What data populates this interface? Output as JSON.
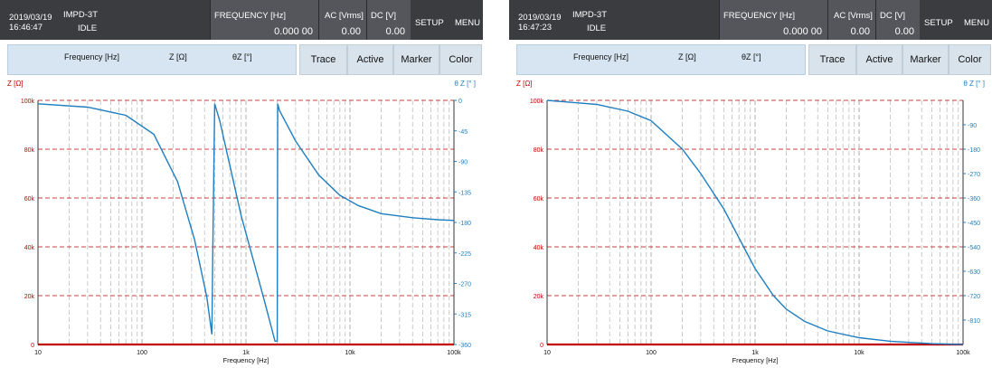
{
  "panels": [
    {
      "date": "2019/03/19",
      "time": "16:46:47",
      "model": "IMPD-3T",
      "status": "IDLE",
      "frequency": {
        "label": "FREQUENCY [Hz]",
        "value": "0.000 00"
      },
      "ac": {
        "label": "AC [Vrms]",
        "value": "0.00"
      },
      "dc": {
        "label": "DC [V]",
        "value": "0.00"
      },
      "setup": "SETUP",
      "menu": "MENU",
      "header_freq": "Frequency [Hz]",
      "header_z": "Z [Ω]",
      "header_theta": "θZ [°]",
      "tabs": [
        "Trace",
        "Active",
        "Marker",
        "Color"
      ],
      "left_axis_label": "Z [Ω]",
      "right_axis_label": "θ Z [° ]",
      "x_axis_label": "Frequency [Hz]"
    },
    {
      "date": "2019/03/19",
      "time": "16:47:23",
      "model": "IMPD-3T",
      "status": "IDLE",
      "frequency": {
        "label": "FREQUENCY [Hz]",
        "value": "0.000 00"
      },
      "ac": {
        "label": "AC [Vrms]",
        "value": "0.00"
      },
      "dc": {
        "label": "DC [V]",
        "value": "0.00"
      },
      "setup": "SETUP",
      "menu": "MENU",
      "header_freq": "Frequency [Hz]",
      "header_z": "Z [Ω]",
      "header_theta": "θZ [°]",
      "tabs": [
        "Trace",
        "Active",
        "Marker",
        "Color"
      ],
      "left_axis_label": "Z [Ω]",
      "right_axis_label": "θ Z [° ]",
      "x_axis_label": "Frequency [Hz]"
    }
  ],
  "colors": {
    "z_trace": "#c00000",
    "theta_trace": "#1f7fc0",
    "grid_major": "#c00000",
    "grid_minor": "#bdbdbd",
    "topbar": "#3b3c3f"
  },
  "chart_data": [
    {
      "type": "line",
      "x_scale": "log",
      "xlim": [
        10,
        100000
      ],
      "x_ticks": [
        "10",
        "100",
        "1k",
        "10k",
        "100k"
      ],
      "y_left_ticks": [
        "0",
        "20k",
        "40k",
        "60k",
        "80k",
        "100k"
      ],
      "y_left_lim": [
        0,
        100000
      ],
      "y_right_ticks": [
        "0",
        "-45",
        "-90",
        "-135",
        "-180",
        "-225",
        "-270",
        "-315",
        "-360"
      ],
      "y_right_lim": [
        -360,
        0
      ],
      "xlabel": "Frequency [Hz]",
      "series": [
        {
          "axis": "left",
          "x": [
            10,
            100000
          ],
          "y": [
            0,
            0
          ]
        },
        {
          "axis": "right",
          "x": [
            10,
            30,
            70,
            130,
            220,
            320,
            420,
            470,
            480,
            500,
            560,
            900,
            1500,
            1900,
            2000,
            2020,
            2100,
            3000,
            5000,
            8000,
            12000,
            20000,
            40000,
            70000,
            100000
          ],
          "y": [
            -5,
            -10,
            -22,
            -50,
            -120,
            -205,
            -290,
            -345,
            -225,
            -5,
            -30,
            -170,
            -295,
            -355,
            -355,
            -5,
            -15,
            -60,
            -110,
            -140,
            -155,
            -167,
            -173,
            -176,
            -177
          ]
        }
      ]
    },
    {
      "type": "line",
      "x_scale": "log",
      "xlim": [
        10,
        100000
      ],
      "x_ticks": [
        "10",
        "100",
        "1k",
        "10k",
        "100k"
      ],
      "y_left_ticks": [
        "0",
        "20k",
        "40k",
        "60k",
        "80k",
        "100k"
      ],
      "y_left_lim": [
        0,
        100000
      ],
      "y_right_ticks": [
        "-90",
        "-180",
        "-270",
        "-360",
        "-450",
        "-540",
        "-630",
        "-720",
        "-810"
      ],
      "y_right_lim": [
        -900,
        0
      ],
      "xlabel": "Frequency [Hz]",
      "series": [
        {
          "axis": "left",
          "x": [
            10,
            100000
          ],
          "y": [
            0,
            0
          ]
        },
        {
          "axis": "right",
          "x": [
            10,
            30,
            60,
            100,
            200,
            300,
            500,
            800,
            1000,
            1500,
            2000,
            3000,
            5000,
            10000,
            20000,
            50000,
            100000
          ],
          "y": [
            0,
            -15,
            -40,
            -75,
            -180,
            -270,
            -400,
            -550,
            -620,
            -720,
            -770,
            -815,
            -850,
            -875,
            -888,
            -897,
            -900
          ]
        }
      ]
    }
  ]
}
